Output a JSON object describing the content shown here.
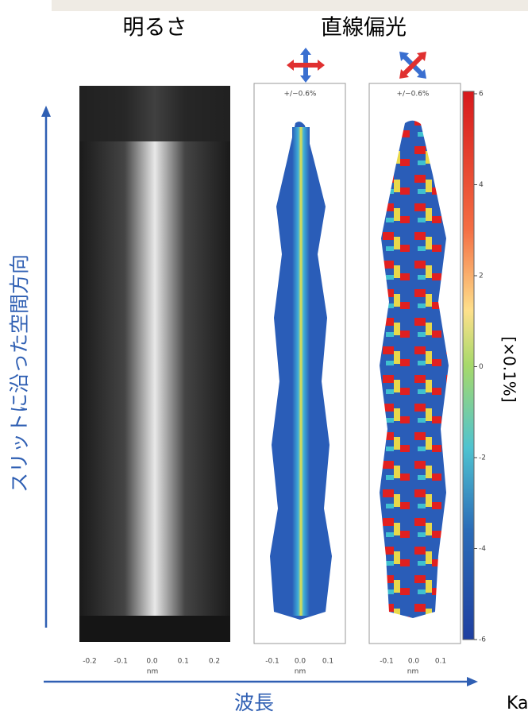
{
  "header": {
    "brightness": "明るさ",
    "polarization": "直線偏光"
  },
  "axes": {
    "vertical": "スリットに沿った空間方向",
    "horizontal": "波長"
  },
  "panels": [
    {
      "xticks": [
        "-0.2",
        "-0.1",
        "0.0",
        "0.1",
        "0.2"
      ],
      "unit": "nm"
    },
    {
      "scale": "+/−0.6%",
      "xticks": [
        "-0.1",
        "0.0",
        "0.1"
      ],
      "unit": "nm"
    },
    {
      "scale": "+/−0.6%",
      "xticks": [
        "-0.1",
        "0.0",
        "0.1"
      ],
      "unit": "nm"
    }
  ],
  "colorbar": {
    "ticks": [
      "6",
      "4",
      "2",
      "0",
      "-2",
      "-4",
      "-6"
    ],
    "label": "[×0.1%]"
  },
  "credit": "Ka"
}
